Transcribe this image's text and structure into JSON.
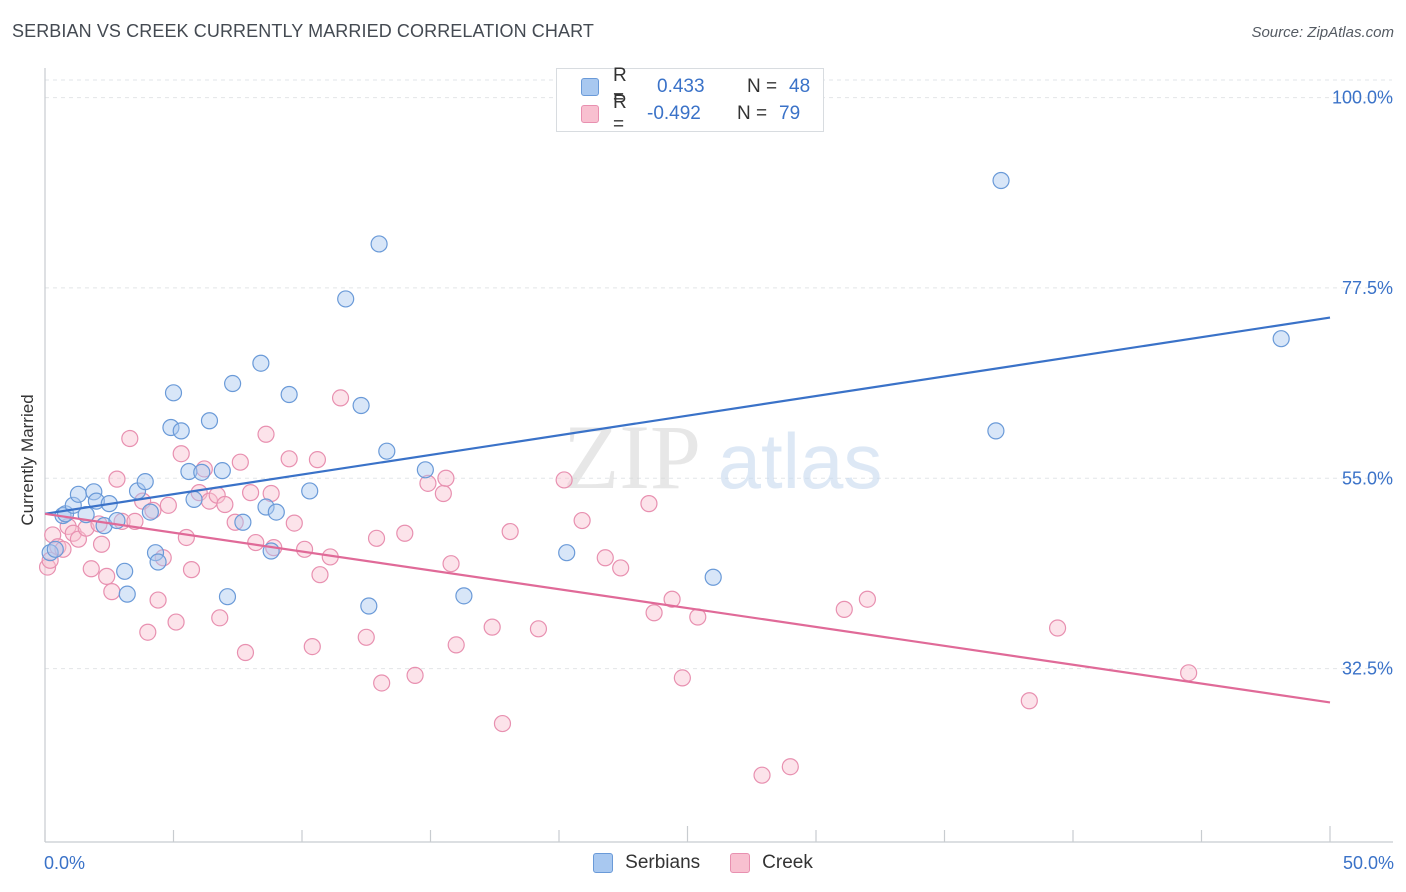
{
  "title": "SERBIAN VS CREEK CURRENTLY MARRIED CORRELATION CHART",
  "source": "Source: ZipAtlas.com",
  "watermark": {
    "zip": "ZIP",
    "atlas": "atlas"
  },
  "colors": {
    "serbians_fill": "#a8c8f0",
    "serbians_stroke": "#6a9ad8",
    "serbians_line": "#3a72c8",
    "creek_fill": "#f8c0d0",
    "creek_stroke": "#e890b0",
    "creek_line": "#e06a98",
    "value_text": "#3a72c8"
  },
  "legend": {
    "rows": [
      {
        "r_label": "R =",
        "r_value": "0.433",
        "n_label": "N =",
        "n_value": "48"
      },
      {
        "r_label": "R =",
        "r_value": "-0.492",
        "n_label": "N =",
        "n_value": "79"
      }
    ]
  },
  "chart_data": {
    "type": "scatter",
    "ylabel": "Currently Married",
    "xlabel": "",
    "x_tick_labels": {
      "min": "0.0%",
      "max": "50.0%"
    },
    "y_tick_labels": [
      "100.0%",
      "77.5%",
      "55.0%",
      "32.5%"
    ],
    "y_ticks": [
      100.0,
      77.5,
      55.0,
      32.5
    ],
    "xlim": [
      0,
      50
    ],
    "ylim": [
      12.0,
      103.5
    ],
    "grid": true,
    "legend_position": "top-center",
    "series": [
      {
        "name": "Serbians",
        "r": 0.433,
        "n": 48,
        "trend": {
          "x0": 0.0,
          "y0": 50.8,
          "x1": 50.0,
          "y1": 74.0
        },
        "points": [
          [
            0.2,
            46.2
          ],
          [
            0.4,
            46.6
          ],
          [
            0.7,
            50.6
          ],
          [
            0.8,
            50.8
          ],
          [
            1.1,
            51.8
          ],
          [
            1.3,
            53.1
          ],
          [
            1.6,
            50.7
          ],
          [
            1.9,
            53.4
          ],
          [
            2.0,
            52.3
          ],
          [
            2.3,
            49.4
          ],
          [
            2.5,
            52.0
          ],
          [
            2.8,
            50.0
          ],
          [
            3.1,
            44.0
          ],
          [
            3.2,
            41.3
          ],
          [
            3.6,
            53.5
          ],
          [
            3.9,
            54.6
          ],
          [
            4.1,
            51.0
          ],
          [
            4.3,
            46.2
          ],
          [
            4.4,
            45.1
          ],
          [
            4.9,
            61.0
          ],
          [
            5.0,
            65.1
          ],
          [
            5.3,
            60.6
          ],
          [
            5.6,
            55.8
          ],
          [
            5.8,
            52.5
          ],
          [
            6.1,
            55.7
          ],
          [
            6.4,
            61.8
          ],
          [
            6.9,
            55.9
          ],
          [
            7.1,
            41.0
          ],
          [
            7.3,
            66.2
          ],
          [
            7.7,
            49.8
          ],
          [
            8.4,
            68.6
          ],
          [
            8.6,
            51.6
          ],
          [
            8.8,
            46.4
          ],
          [
            9.0,
            51.0
          ],
          [
            9.5,
            64.9
          ],
          [
            10.3,
            53.5
          ],
          [
            11.7,
            76.2
          ],
          [
            12.3,
            63.6
          ],
          [
            12.6,
            39.9
          ],
          [
            13.0,
            82.7
          ],
          [
            13.3,
            58.2
          ],
          [
            14.8,
            56.0
          ],
          [
            16.3,
            41.1
          ],
          [
            20.3,
            46.2
          ],
          [
            26.0,
            43.3
          ],
          [
            37.0,
            60.6
          ],
          [
            37.2,
            90.2
          ],
          [
            48.1,
            71.5
          ]
        ]
      },
      {
        "name": "Creek",
        "r": -0.492,
        "n": 79,
        "trend": {
          "x0": 0.0,
          "y0": 50.8,
          "x1": 50.0,
          "y1": 28.5
        },
        "points": [
          [
            0.1,
            44.5
          ],
          [
            0.2,
            45.3
          ],
          [
            0.3,
            48.3
          ],
          [
            0.5,
            46.9
          ],
          [
            0.7,
            46.6
          ],
          [
            0.9,
            49.3
          ],
          [
            1.1,
            48.5
          ],
          [
            1.3,
            47.8
          ],
          [
            1.6,
            49.1
          ],
          [
            1.8,
            44.3
          ],
          [
            2.1,
            49.6
          ],
          [
            2.2,
            47.2
          ],
          [
            2.4,
            43.4
          ],
          [
            2.6,
            41.6
          ],
          [
            2.8,
            54.9
          ],
          [
            3.0,
            49.9
          ],
          [
            3.3,
            59.7
          ],
          [
            3.5,
            49.9
          ],
          [
            3.8,
            52.3
          ],
          [
            4.0,
            36.8
          ],
          [
            4.2,
            51.2
          ],
          [
            4.4,
            40.6
          ],
          [
            4.6,
            45.6
          ],
          [
            4.8,
            51.8
          ],
          [
            5.1,
            38.0
          ],
          [
            5.3,
            57.9
          ],
          [
            5.5,
            48.0
          ],
          [
            5.7,
            44.2
          ],
          [
            6.0,
            53.3
          ],
          [
            6.2,
            56.1
          ],
          [
            6.4,
            52.3
          ],
          [
            6.7,
            53.0
          ],
          [
            6.8,
            38.5
          ],
          [
            7.0,
            51.9
          ],
          [
            7.4,
            49.8
          ],
          [
            7.6,
            56.9
          ],
          [
            7.8,
            34.4
          ],
          [
            8.0,
            53.3
          ],
          [
            8.2,
            47.4
          ],
          [
            8.6,
            60.2
          ],
          [
            8.8,
            53.2
          ],
          [
            8.9,
            46.8
          ],
          [
            9.5,
            57.3
          ],
          [
            9.7,
            49.7
          ],
          [
            10.1,
            46.6
          ],
          [
            10.4,
            35.1
          ],
          [
            10.6,
            57.2
          ],
          [
            10.7,
            43.6
          ],
          [
            11.1,
            45.7
          ],
          [
            11.5,
            64.5
          ],
          [
            12.5,
            36.2
          ],
          [
            12.9,
            47.9
          ],
          [
            13.1,
            30.8
          ],
          [
            14.0,
            48.5
          ],
          [
            14.4,
            31.7
          ],
          [
            14.9,
            54.4
          ],
          [
            15.5,
            53.2
          ],
          [
            15.6,
            55.0
          ],
          [
            15.8,
            44.9
          ],
          [
            16.0,
            35.3
          ],
          [
            17.4,
            37.4
          ],
          [
            17.8,
            26.0
          ],
          [
            18.1,
            48.7
          ],
          [
            19.2,
            37.2
          ],
          [
            20.2,
            54.8
          ],
          [
            20.9,
            50.0
          ],
          [
            21.8,
            45.6
          ],
          [
            22.4,
            44.4
          ],
          [
            23.5,
            52.0
          ],
          [
            23.7,
            39.1
          ],
          [
            24.4,
            40.7
          ],
          [
            24.8,
            31.4
          ],
          [
            25.4,
            38.6
          ],
          [
            27.9,
            19.9
          ],
          [
            29.0,
            20.9
          ],
          [
            31.1,
            39.5
          ],
          [
            32.0,
            40.7
          ],
          [
            38.3,
            28.7
          ],
          [
            39.4,
            37.3
          ],
          [
            44.5,
            32.0
          ]
        ]
      }
    ]
  }
}
